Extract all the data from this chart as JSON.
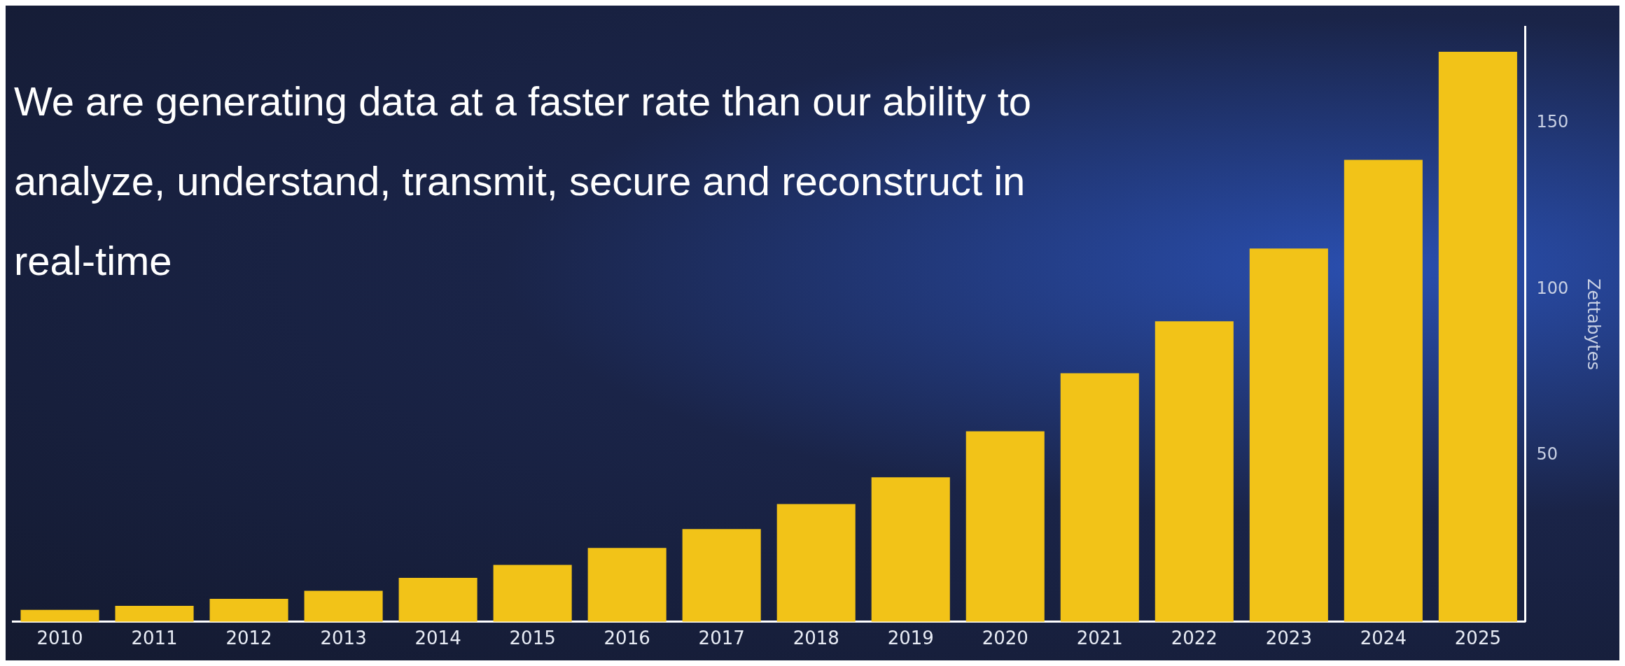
{
  "chart_data": {
    "type": "bar",
    "title": "We are generating data at a faster rate than our ability to analyze, understand, transmit, secure and reconstruct in real-time",
    "ylabel": "Zettabytes",
    "categories": [
      "2010",
      "2011",
      "2012",
      "2013",
      "2014",
      "2015",
      "2016",
      "2017",
      "2018",
      "2019",
      "2020",
      "2021",
      "2022",
      "2023",
      "2024",
      "2025"
    ],
    "values": [
      3.6,
      4.8,
      6.9,
      9.3,
      13.2,
      17.1,
      22.2,
      27.9,
      35.4,
      43.5,
      57.3,
      74.8,
      90.4,
      112.3,
      139,
      171.5
    ],
    "color": "#f2c318",
    "ylim": [
      0,
      179
    ],
    "yticks": [
      50,
      100,
      150
    ],
    "grid": false,
    "legend": false
  }
}
